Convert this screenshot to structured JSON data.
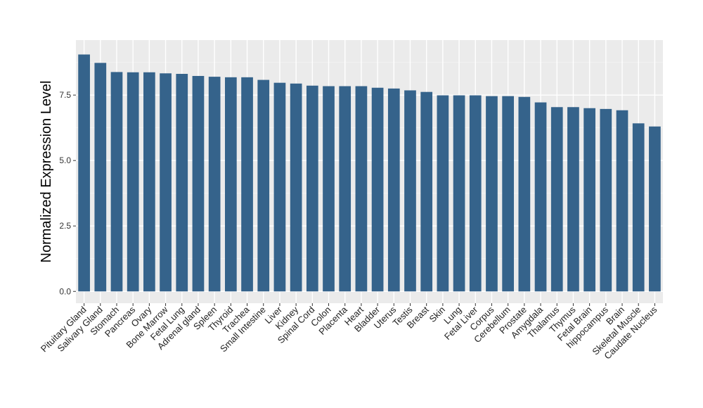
{
  "chart_data": {
    "type": "bar",
    "ylabel": "Normalized Expression Level",
    "xlabel": "",
    "ylim": [
      -0.45,
      9.6
    ],
    "yticks": [
      0.0,
      2.5,
      5.0,
      7.5
    ],
    "ytick_labels": [
      "0.0",
      "2.5",
      "5.0",
      "7.5"
    ],
    "grid": true,
    "bar_color": "#35638B",
    "panel_color": "#EBEBEB",
    "categories": [
      "Pituitary Gland",
      "Salivary Gland",
      "Stomach",
      "Pancreas",
      "Ovary",
      "Bone Marrow",
      "Fetal Lung",
      "Adrenal gland",
      "Spleen",
      "Thyroid",
      "Trachea",
      "Small Intestine",
      "Liver",
      "Kidney",
      "Spinal Cord",
      "Colon",
      "Placenta",
      "Heart",
      "Bladder",
      "Uterus",
      "Testis",
      "Breast",
      "Skin",
      "Lung",
      "Fetal Liver",
      "Corpus",
      "Cerebellum",
      "Prostate",
      "Amygdala",
      "Thalamus",
      "Thymus",
      "Fetal Brain",
      "hippocampus",
      "Brain",
      "Skeletal Muscle",
      "Caudate Nucleus"
    ],
    "values": [
      9.05,
      8.73,
      8.38,
      8.37,
      8.37,
      8.33,
      8.31,
      8.23,
      8.2,
      8.18,
      8.18,
      8.08,
      7.97,
      7.94,
      7.86,
      7.84,
      7.84,
      7.84,
      7.78,
      7.75,
      7.68,
      7.62,
      7.49,
      7.49,
      7.49,
      7.46,
      7.46,
      7.43,
      7.22,
      7.04,
      7.04,
      7.0,
      6.97,
      6.92,
      6.42,
      6.3
    ]
  }
}
